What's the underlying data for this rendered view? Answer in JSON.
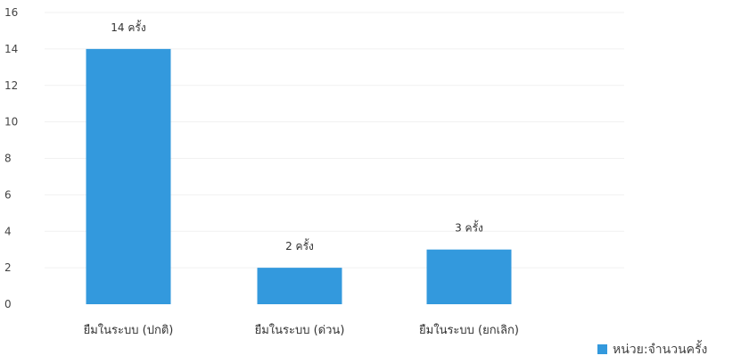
{
  "chart_data": {
    "type": "bar",
    "categories": [
      "ยืมในระบบ (ปกติ)",
      "ยืมในระบบ (ด่วน)",
      "ยืมในระบบ (ยกเลิก)"
    ],
    "values": [
      14,
      2,
      3
    ],
    "data_labels": [
      "14 ครั้ง",
      "2 ครั้ง",
      "3 ครั้ง"
    ],
    "yticks": [
      0,
      2,
      4,
      6,
      8,
      10,
      12,
      14,
      16
    ],
    "ylim": [
      0,
      16
    ],
    "grid": true,
    "bar_color": "#3399dd",
    "legend": {
      "label": "หน่วย:จำนวนครั้ง",
      "position": "bottom-right"
    }
  }
}
